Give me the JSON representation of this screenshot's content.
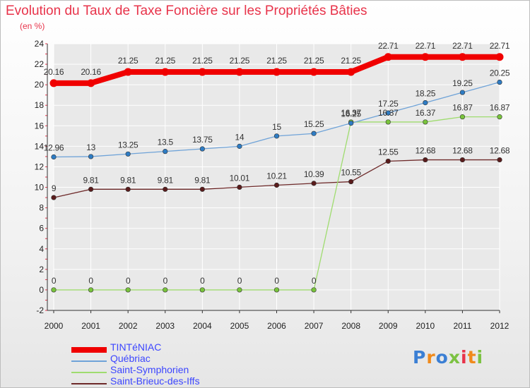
{
  "title": "Evolution du Taux de Taxe Foncière sur les Propriétés Bâties",
  "unit_label": "(en %)",
  "logo": {
    "text": "Proxiti",
    "letter_colors": [
      "#3b7fd4",
      "#f08a1c",
      "#3b7fd4",
      "#7cc242",
      "#e8334a",
      "#f08a1c",
      "#7cc242"
    ]
  },
  "colors": {
    "title": "#e8334a",
    "axis": "#333333",
    "grid": "#ffffff",
    "tick_marks": "#e8334a",
    "legend_text": "#3c46ff"
  },
  "chart_data": {
    "type": "line",
    "x": [
      "2000",
      "2001",
      "2002",
      "2003",
      "2004",
      "2005",
      "2006",
      "2007",
      "2008",
      "2009",
      "2010",
      "2011",
      "2012"
    ],
    "ylim": [
      -2,
      24
    ],
    "yticks": [
      "-2",
      "0",
      "2",
      "4",
      "6",
      "8",
      "10",
      "12",
      "14",
      "16",
      "18",
      "20",
      "22",
      "24"
    ],
    "grid": true,
    "legend_position": "bottom-left",
    "series": [
      {
        "name": "TINTéNIAC",
        "color": "#f00000",
        "marker_color": "#f00000",
        "line_width": "thick",
        "values": [
          20.16,
          20.16,
          21.25,
          21.25,
          21.25,
          21.25,
          21.25,
          21.25,
          21.25,
          22.71,
          22.71,
          22.71,
          22.71
        ],
        "labels": [
          "20.16",
          "20.16",
          "21.25",
          "21.25",
          "21.25",
          "21.25",
          "21.25",
          "21.25",
          "21.25",
          "22.71",
          "22.71",
          "22.71",
          "22.71"
        ]
      },
      {
        "name": "Québriac",
        "color": "#6fa3d8",
        "marker_color": "#2e7cc4",
        "line_width": "thin",
        "values": [
          12.96,
          13,
          13.25,
          13.5,
          13.75,
          14,
          15,
          15.25,
          16.25,
          17.25,
          18.25,
          19.25,
          20.25
        ],
        "labels": [
          "12.96",
          "13",
          "13.25",
          "13.5",
          "13.75",
          "14",
          "15",
          "15.25",
          "16.25",
          "17.25",
          "18.25",
          "19.25",
          "20.25"
        ]
      },
      {
        "name": "Saint-Symphorien",
        "color": "#9fdc6f",
        "marker_color": "#79c43c",
        "line_width": "thin",
        "values": [
          0,
          0,
          0,
          0,
          0,
          0,
          0,
          0,
          16.37,
          16.37,
          16.37,
          16.87,
          16.87
        ],
        "labels": [
          "0",
          "0",
          "0",
          "0",
          "0",
          "0",
          "0",
          "0",
          "16.37",
          "16.37",
          "16.37",
          "16.87",
          "16.87"
        ]
      },
      {
        "name": "Saint-Brieuc-des-Iffs",
        "color": "#6e2a2a",
        "marker_color": "#5a1c1c",
        "line_width": "thin",
        "values": [
          9,
          9.81,
          9.81,
          9.81,
          9.81,
          10.01,
          10.21,
          10.39,
          10.55,
          12.55,
          12.68,
          12.68,
          12.68
        ],
        "labels": [
          "9",
          "9.81",
          "9.81",
          "9.81",
          "9.81",
          "10.01",
          "10.21",
          "10.39",
          "10.55",
          "12.55",
          "12.68",
          "12.68",
          "12.68"
        ]
      }
    ]
  }
}
